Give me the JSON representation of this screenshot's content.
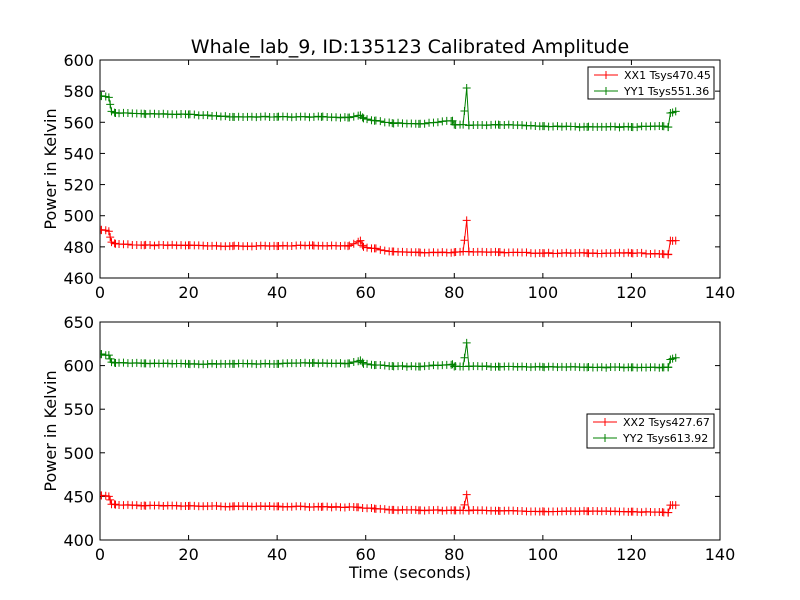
{
  "chart_data": {
    "title": "Whale_lab_9, ID:135123 Calibrated Amplitude",
    "colors": {
      "xx": "#ff0000",
      "yy": "#008000"
    },
    "panels": [
      {
        "type": "line",
        "xlabel": "",
        "ylabel": "Power in Kelvin",
        "xlim": [
          0,
          140
        ],
        "ylim": [
          460,
          600
        ],
        "xticks": [
          0,
          20,
          40,
          60,
          80,
          100,
          120,
          140
        ],
        "yticks": [
          460,
          480,
          500,
          520,
          540,
          560,
          580,
          600
        ],
        "grid": false,
        "legend_position": "top-right",
        "marker": "plus",
        "series": [
          {
            "name": "XX1 Tsys470.45",
            "color": "#ff0000",
            "keypoints": [
              [
                0.3,
                491
              ],
              [
                2,
                490
              ],
              [
                2.6,
                483
              ],
              [
                3.5,
                482
              ],
              [
                10,
                481
              ],
              [
                20,
                481
              ],
              [
                30,
                480.5
              ],
              [
                40,
                480.5
              ],
              [
                48,
                481
              ],
              [
                56,
                480.5
              ],
              [
                58.8,
                484
              ],
              [
                59.5,
                480
              ],
              [
                62,
                479
              ],
              [
                66,
                477
              ],
              [
                72,
                476.5
              ],
              [
                80,
                476.5
              ],
              [
                82,
                477
              ],
              [
                82.8,
                497
              ],
              [
                83.3,
                477
              ],
              [
                90,
                476.5
              ],
              [
                100,
                476
              ],
              [
                110,
                476
              ],
              [
                120,
                476
              ],
              [
                127,
                475.5
              ],
              [
                128.3,
                475
              ],
              [
                128.8,
                484
              ],
              [
                130,
                484
              ]
            ]
          },
          {
            "name": "YY1 Tsys551.36",
            "color": "#008000",
            "keypoints": [
              [
                0.3,
                577
              ],
              [
                2,
                576
              ],
              [
                2.6,
                567
              ],
              [
                3.5,
                566
              ],
              [
                10,
                565.5
              ],
              [
                20,
                565
              ],
              [
                30,
                563.5
              ],
              [
                40,
                563.5
              ],
              [
                50,
                563.5
              ],
              [
                56,
                563
              ],
              [
                58.8,
                564.5
              ],
              [
                59.5,
                562.5
              ],
              [
                62,
                561
              ],
              [
                66,
                559.5
              ],
              [
                72,
                559
              ],
              [
                79.6,
                561
              ],
              [
                80,
                558.5
              ],
              [
                82,
                558.5
              ],
              [
                82.8,
                582
              ],
              [
                83.3,
                558
              ],
              [
                90,
                558.5
              ],
              [
                100,
                557.5
              ],
              [
                110,
                557
              ],
              [
                120,
                557
              ],
              [
                127,
                557.5
              ],
              [
                128.3,
                557
              ],
              [
                128.8,
                566
              ],
              [
                130,
                567
              ]
            ]
          }
        ]
      },
      {
        "type": "line",
        "xlabel": "Time (seconds)",
        "ylabel": "Power in Kelvin",
        "xlim": [
          0,
          140
        ],
        "ylim": [
          400,
          650
        ],
        "xticks": [
          0,
          20,
          40,
          60,
          80,
          100,
          120,
          140
        ],
        "yticks": [
          400,
          450,
          500,
          550,
          600,
          650
        ],
        "grid": false,
        "legend_position": "center-right",
        "marker": "plus",
        "series": [
          {
            "name": "XX2 Tsys427.67",
            "color": "#ff0000",
            "keypoints": [
              [
                0.3,
                451
              ],
              [
                2,
                450
              ],
              [
                2.6,
                441
              ],
              [
                3.5,
                440.5
              ],
              [
                10,
                439.5
              ],
              [
                20,
                439
              ],
              [
                30,
                438.5
              ],
              [
                40,
                438.5
              ],
              [
                50,
                438
              ],
              [
                58,
                437.5
              ],
              [
                62,
                436
              ],
              [
                66,
                434.5
              ],
              [
                72,
                434
              ],
              [
                80,
                434
              ],
              [
                82,
                434
              ],
              [
                82.8,
                452
              ],
              [
                83.3,
                434
              ],
              [
                90,
                433.5
              ],
              [
                100,
                433
              ],
              [
                110,
                433
              ],
              [
                120,
                432.5
              ],
              [
                127,
                432
              ],
              [
                128.3,
                431.5
              ],
              [
                128.8,
                440
              ],
              [
                130,
                440
              ]
            ]
          },
          {
            "name": "YY2 Tsys613.92",
            "color": "#008000",
            "keypoints": [
              [
                0.3,
                613
              ],
              [
                2,
                612
              ],
              [
                2.6,
                604
              ],
              [
                3.5,
                603
              ],
              [
                10,
                602.5
              ],
              [
                20,
                602
              ],
              [
                30,
                602
              ],
              [
                40,
                602
              ],
              [
                48,
                603
              ],
              [
                56,
                602.5
              ],
              [
                58.8,
                606
              ],
              [
                59.5,
                602
              ],
              [
                62,
                600.5
              ],
              [
                66,
                599.5
              ],
              [
                72,
                599
              ],
              [
                79.6,
                601.5
              ],
              [
                80,
                599
              ],
              [
                82,
                599
              ],
              [
                82.8,
                626
              ],
              [
                83.3,
                599
              ],
              [
                90,
                599
              ],
              [
                100,
                598.5
              ],
              [
                110,
                598
              ],
              [
                120,
                598
              ],
              [
                127,
                598
              ],
              [
                128.3,
                598
              ],
              [
                128.8,
                607
              ],
              [
                130,
                609
              ]
            ]
          }
        ]
      }
    ]
  }
}
